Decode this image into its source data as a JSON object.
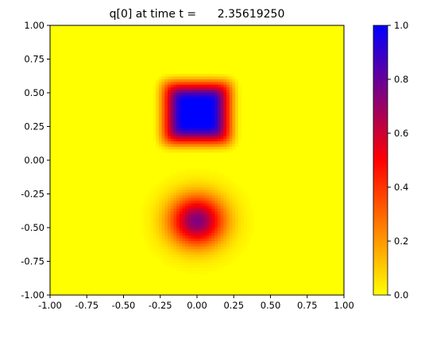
{
  "chart_data": {
    "type": "heatmap",
    "title": "q[0] at time t =      2.35619250",
    "xlabel": "",
    "ylabel": "",
    "xlim": [
      -1.0,
      1.0
    ],
    "ylim": [
      -1.0,
      1.0
    ],
    "x_ticks": [
      "-1.00",
      "-0.75",
      "-0.50",
      "-0.25",
      "0.00",
      "0.25",
      "0.50",
      "0.75",
      "1.00"
    ],
    "y_ticks": [
      "-1.00",
      "-0.75",
      "-0.50",
      "-0.25",
      "0.00",
      "0.25",
      "0.50",
      "0.75",
      "1.00"
    ],
    "grid": false,
    "colorbar": {
      "min": 0.0,
      "max": 1.0,
      "ticks": [
        "0.0",
        "0.2",
        "0.4",
        "0.6",
        "0.8",
        "1.0"
      ],
      "colors": [
        "#ffff00",
        "#ff0000",
        "#0000ff"
      ]
    },
    "features": [
      {
        "shape": "square",
        "center": [
          0.0,
          0.35
        ],
        "half_width": 0.2,
        "peak": 1.0
      },
      {
        "shape": "circle",
        "center": [
          0.0,
          -0.45
        ],
        "radius": 0.3,
        "peak": 0.75
      }
    ]
  }
}
